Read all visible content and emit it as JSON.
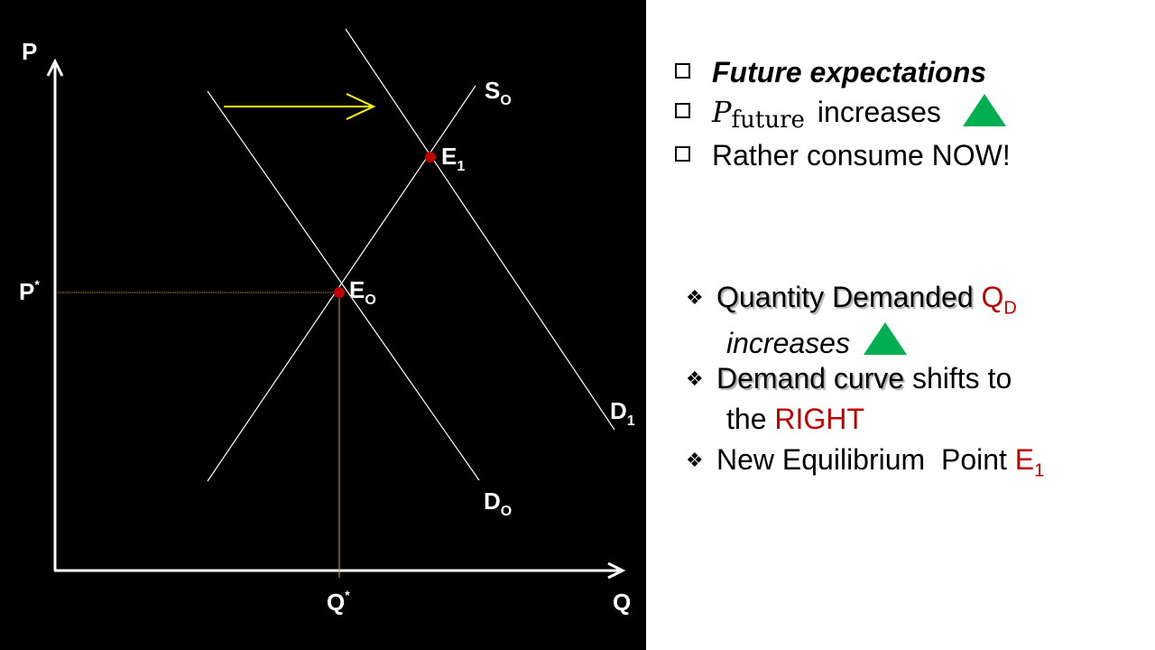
{
  "colors": {
    "background_left": "#000000",
    "background_right": "#ffffff",
    "curve": "#ffffff",
    "guide": "#c9a227",
    "shift_arrow": "#ffff00",
    "point": "#c00000",
    "accent_red": "#c00000",
    "triangle": "#00b050"
  },
  "diagram": {
    "y_axis_label": "P",
    "x_axis_label": "Q",
    "p_star_label": "P",
    "p_star_sup": "*",
    "q_star_label": "Q",
    "q_star_sup": "*",
    "supply_label": "S",
    "supply_sub": "O",
    "demand0_label": "D",
    "demand0_sub": "O",
    "demand1_label": "D",
    "demand1_sub": "1",
    "e0_label": "E",
    "e0_sub": "O",
    "e1_label": "E",
    "e1_sub": "1"
  },
  "checklist": [
    {
      "text": "Future expectations"
    },
    {
      "math_p": "P",
      "math_sub": "future",
      "text": "increases"
    },
    {
      "text": "Rather consume NOW!"
    }
  ],
  "bullets": {
    "b1_part1": "Quantity Demanded",
    "b1_q": "Q",
    "b1_q_sub": "D",
    "b1_part2": "increases",
    "b2_part1": "Demand curve",
    "b2_part2": "shifts to",
    "b2_part3": "the",
    "b2_part4": "RIGHT",
    "b3_text": "New Equilibrium  Point",
    "b3_e": "E",
    "b3_e_sub": "1"
  }
}
